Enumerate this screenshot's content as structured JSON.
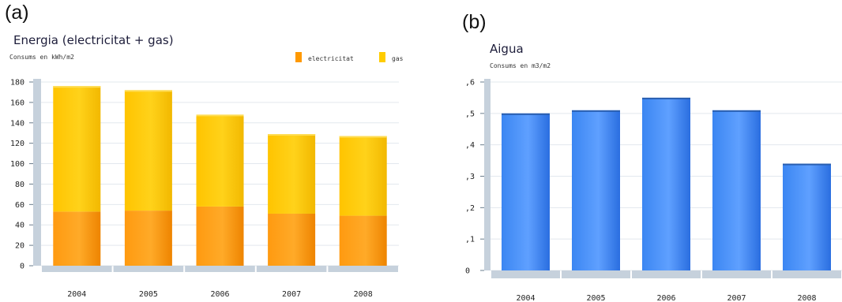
{
  "panels": {
    "a": {
      "label": "(a)"
    },
    "b": {
      "label": "(b)"
    }
  },
  "chart_data": [
    {
      "type": "bar",
      "stacked": true,
      "title": "Energia (electricitat + gas)",
      "subtitle": "Consums en kWh/m2",
      "categories": [
        "2004",
        "2005",
        "2006",
        "2007",
        "2008"
      ],
      "series": [
        {
          "name": "electricitat",
          "values": [
            53,
            54,
            58,
            51,
            49
          ],
          "color": "#ff9900"
        },
        {
          "name": "gas",
          "values": [
            123,
            118,
            90,
            78,
            78
          ],
          "color": "#ffcc00"
        }
      ],
      "ylim": [
        0,
        180
      ],
      "yticks": [
        "0",
        "20",
        "40",
        "60",
        "80",
        "100",
        "120",
        "140",
        "160",
        "180"
      ],
      "grid": true,
      "legend": "top-right"
    },
    {
      "type": "bar",
      "title": "Aigua",
      "subtitle": "Consums en m3/m2",
      "categories": [
        "2004",
        "2005",
        "2006",
        "2007",
        "2008"
      ],
      "values": [
        0.5,
        0.51,
        0.55,
        0.51,
        0.34
      ],
      "color": "#3a86f0",
      "ylim": [
        0,
        0.6
      ],
      "yticks": [
        "0",
        ",1",
        ",2",
        ",3",
        ",4",
        ",5",
        ",6"
      ],
      "grid": true
    }
  ]
}
